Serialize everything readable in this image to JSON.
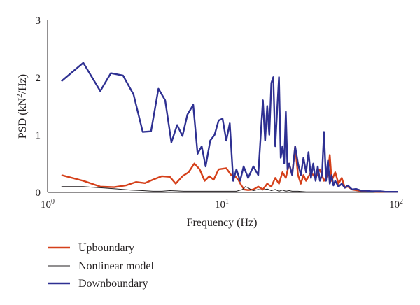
{
  "chart_data": {
    "type": "line",
    "xscale": "log",
    "xlabel": "Frequency (Hz)",
    "ylabel_prefix": "PSD (kN",
    "ylabel_sup": "2",
    "ylabel_suffix": "/Hz)",
    "xlim": [
      1,
      100
    ],
    "ylim": [
      0,
      3
    ],
    "yticks": [
      0,
      1,
      2,
      3
    ],
    "xticks": [
      {
        "base": "10",
        "exp": "0",
        "value": 1
      },
      {
        "base": "10",
        "exp": "1",
        "value": 10
      },
      {
        "base": "10",
        "exp": "2",
        "value": 100
      }
    ],
    "grid": false,
    "legend_position": "bottom-left",
    "series": [
      {
        "name": "Upboundary",
        "color": "#d5401a",
        "x": [
          1.2,
          1.6,
          2.0,
          2.4,
          2.8,
          3.2,
          3.6,
          4.0,
          4.5,
          5.0,
          5.4,
          5.9,
          6.4,
          6.9,
          7.4,
          7.9,
          8.4,
          8.9,
          9.5,
          10.5,
          11.2,
          11.8,
          12.3,
          12.8,
          13.3,
          14.0,
          15.0,
          16.0,
          17.0,
          18.0,
          19.0,
          20.0,
          21.0,
          22.0,
          23.0,
          24.0,
          25.0,
          26.0,
          27.0,
          28.0,
          29.0,
          30.0,
          32.0,
          34.0,
          36.0,
          38.0,
          40.0,
          41.0,
          42.0,
          44.0,
          46.0,
          48.0,
          50.0,
          52.0,
          55.0,
          60.0,
          65.0,
          70.0,
          75.0,
          80.0,
          85.0,
          90.0,
          95.0,
          100.0
        ],
        "y": [
          0.3,
          0.2,
          0.1,
          0.09,
          0.12,
          0.18,
          0.16,
          0.22,
          0.28,
          0.27,
          0.15,
          0.28,
          0.35,
          0.5,
          0.4,
          0.2,
          0.28,
          0.22,
          0.4,
          0.42,
          0.3,
          0.28,
          0.22,
          0.12,
          0.05,
          0.04,
          0.05,
          0.1,
          0.05,
          0.15,
          0.1,
          0.25,
          0.15,
          0.35,
          0.25,
          0.5,
          0.3,
          0.8,
          0.3,
          0.15,
          0.3,
          0.2,
          0.35,
          0.25,
          0.4,
          0.2,
          0.3,
          0.65,
          0.2,
          0.35,
          0.15,
          0.25,
          0.08,
          0.1,
          0.05,
          0.03,
          0.02,
          0.02,
          0.01,
          0.01,
          0.01,
          0.01,
          0.01,
          0.01
        ]
      },
      {
        "name": "Nonlinear model",
        "color": "#231f20",
        "x": [
          1.2,
          1.6,
          2.0,
          2.5,
          3.0,
          3.5,
          4.0,
          4.5,
          5.0,
          6.0,
          7.0,
          8.0,
          9.0,
          10.0,
          11.0,
          12.0,
          13.0,
          13.5,
          14.0,
          14.5,
          15.0,
          16.0,
          17.0,
          18.0,
          19.0,
          20.0,
          21.0,
          22.0,
          23.0,
          24.0,
          25.0,
          27.0,
          30.0,
          35.0,
          40.0,
          50.0,
          60.0,
          80.0,
          100.0
        ],
        "y": [
          0.1,
          0.1,
          0.08,
          0.06,
          0.04,
          0.03,
          0.02,
          0.02,
          0.03,
          0.02,
          0.02,
          0.02,
          0.02,
          0.02,
          0.02,
          0.02,
          0.05,
          0.1,
          0.08,
          0.05,
          0.03,
          0.05,
          0.04,
          0.06,
          0.03,
          0.05,
          0.02,
          0.04,
          0.02,
          0.03,
          0.02,
          0.02,
          0.01,
          0.01,
          0.01,
          0.01,
          0.01,
          0.005,
          0.005
        ]
      },
      {
        "name": "Downboundary",
        "color": "#2e3092",
        "x": [
          1.2,
          1.6,
          2.0,
          2.3,
          2.7,
          3.1,
          3.5,
          3.9,
          4.3,
          4.7,
          5.1,
          5.5,
          5.9,
          6.3,
          6.8,
          7.2,
          7.6,
          8.0,
          8.5,
          9.0,
          9.5,
          10.0,
          10.5,
          11.0,
          11.5,
          12.0,
          12.6,
          13.2,
          14.0,
          15.0,
          16.0,
          17.0,
          17.5,
          18.0,
          18.5,
          19.0,
          19.5,
          20.0,
          20.5,
          21.0,
          21.5,
          22.0,
          22.5,
          23.0,
          23.5,
          24.0,
          25.0,
          26.0,
          27.0,
          28.0,
          29.0,
          30.0,
          31.0,
          32.0,
          33.0,
          34.0,
          35.0,
          36.0,
          37.0,
          38.0,
          39.0,
          40.0,
          41.0,
          42.0,
          43.0,
          44.0,
          46.0,
          48.0,
          50.0,
          52.0,
          55.0,
          58.0,
          62.0,
          66.0,
          70.0,
          75.0,
          80.0,
          85.0,
          90.0,
          95.0,
          100.0
        ],
        "y": [
          1.93,
          2.25,
          1.76,
          2.07,
          2.03,
          1.7,
          1.05,
          1.06,
          1.8,
          1.6,
          0.87,
          1.17,
          0.98,
          1.35,
          1.52,
          0.67,
          0.8,
          0.45,
          0.9,
          1.0,
          1.25,
          1.28,
          0.9,
          1.2,
          0.2,
          0.4,
          0.2,
          0.45,
          0.25,
          0.45,
          0.3,
          1.6,
          0.9,
          1.5,
          1.0,
          1.9,
          2.0,
          0.8,
          1.4,
          2.0,
          0.6,
          0.8,
          0.5,
          1.4,
          0.4,
          0.5,
          0.3,
          0.8,
          0.5,
          0.3,
          0.6,
          0.35,
          0.7,
          0.25,
          0.5,
          0.2,
          0.45,
          0.2,
          0.3,
          1.05,
          0.2,
          0.55,
          0.15,
          0.3,
          0.12,
          0.2,
          0.1,
          0.15,
          0.08,
          0.12,
          0.05,
          0.06,
          0.03,
          0.03,
          0.02,
          0.02,
          0.02,
          0.01,
          0.01,
          0.01,
          0.01
        ]
      }
    ]
  }
}
